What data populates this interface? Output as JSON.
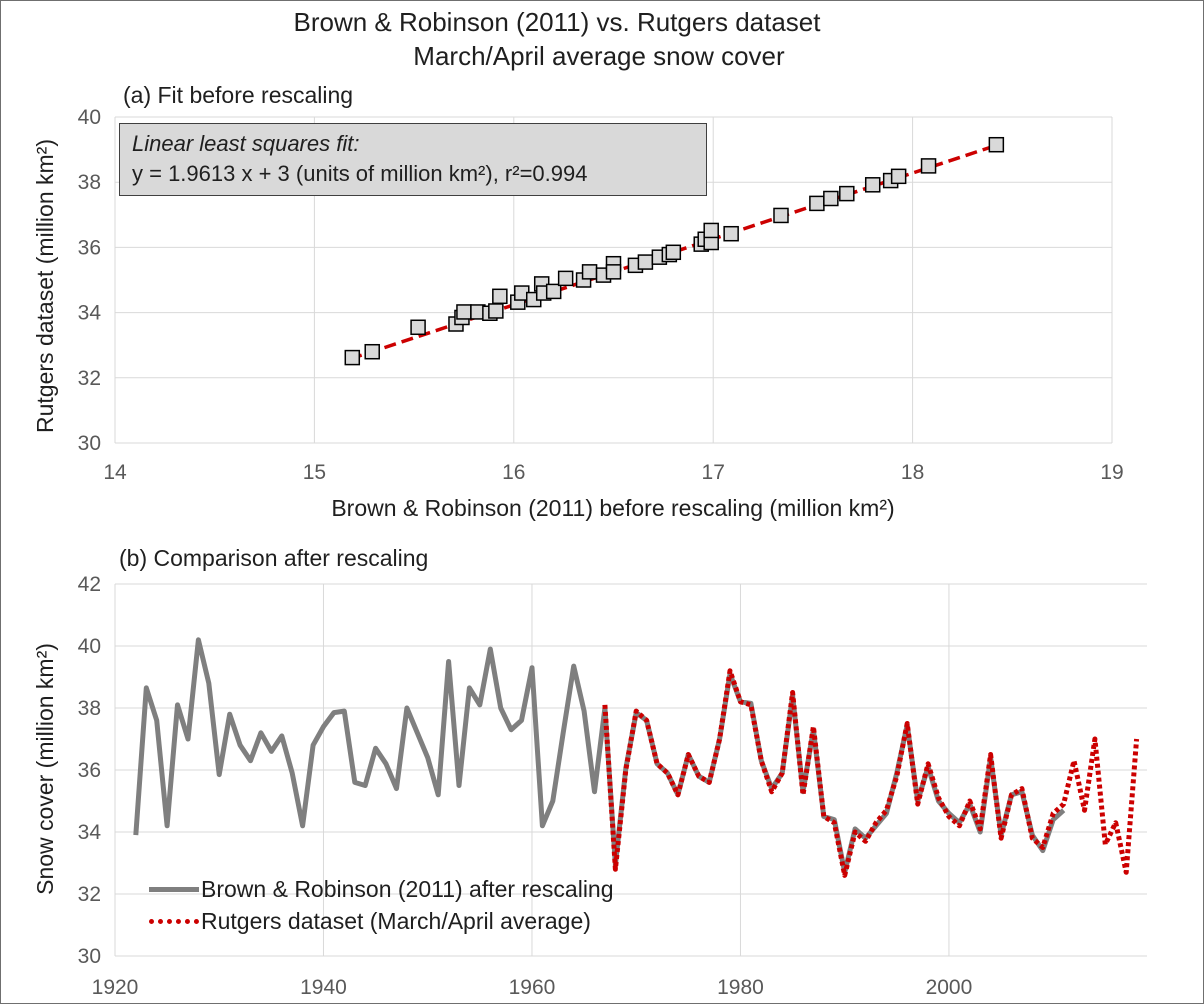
{
  "title": {
    "line1": "Brown & Robinson (2011) vs. Rutgers dataset",
    "line2": "March/April average snow cover"
  },
  "colors": {
    "grid": "#d9d9d9",
    "scatter_fill": "#d9d9d9",
    "fit_line": "#cc0000",
    "brown_line": "#7f7f7f",
    "rutgers_line": "#cc0000"
  },
  "annotation": {
    "line1": "Linear least squares fit:",
    "line2": "y = 1.9613 x + 3 (units of million km²), r²=0.994"
  },
  "chart_data": [
    {
      "type": "scatter",
      "panel_label": "(a) Fit before rescaling",
      "xlabel": "Brown & Robinson (2011) before rescaling (million km²)",
      "ylabel": "Rutgers dataset (million km²)",
      "xlim": [
        14,
        19
      ],
      "ylim": [
        30,
        40
      ],
      "xticks": [
        14,
        15,
        16,
        17,
        18,
        19
      ],
      "yticks": [
        30,
        32,
        34,
        36,
        38,
        40
      ],
      "grid": true,
      "marker": "square",
      "fit": {
        "slope": 1.9613,
        "intercept": 3,
        "r2": 0.994,
        "x_range": [
          15.18,
          18.42
        ],
        "style": "dashed"
      },
      "points": [
        [
          15.19,
          32.62
        ],
        [
          15.29,
          32.8
        ],
        [
          15.52,
          33.55
        ],
        [
          15.71,
          33.65
        ],
        [
          15.74,
          33.85
        ],
        [
          15.75,
          34.02
        ],
        [
          15.82,
          34.02
        ],
        [
          15.88,
          33.98
        ],
        [
          15.91,
          34.05
        ],
        [
          15.93,
          34.5
        ],
        [
          16.02,
          34.32
        ],
        [
          16.04,
          34.6
        ],
        [
          16.1,
          34.4
        ],
        [
          16.14,
          34.88
        ],
        [
          16.15,
          34.6
        ],
        [
          16.2,
          34.65
        ],
        [
          16.26,
          35.05
        ],
        [
          16.35,
          35.0
        ],
        [
          16.38,
          35.25
        ],
        [
          16.45,
          35.15
        ],
        [
          16.5,
          35.5
        ],
        [
          16.5,
          35.25
        ],
        [
          16.61,
          35.45
        ],
        [
          16.66,
          35.55
        ],
        [
          16.73,
          35.7
        ],
        [
          16.78,
          35.78
        ],
        [
          16.8,
          35.85
        ],
        [
          16.94,
          36.1
        ],
        [
          16.96,
          36.25
        ],
        [
          16.99,
          36.15
        ],
        [
          16.99,
          36.52
        ],
        [
          17.09,
          36.42
        ],
        [
          17.34,
          36.98
        ],
        [
          17.52,
          37.35
        ],
        [
          17.59,
          37.5
        ],
        [
          17.67,
          37.65
        ],
        [
          17.8,
          37.92
        ],
        [
          17.89,
          38.05
        ],
        [
          17.93,
          38.18
        ],
        [
          18.08,
          38.5
        ],
        [
          18.42,
          39.15
        ]
      ]
    },
    {
      "type": "line",
      "panel_label": "(b) Comparison after rescaling",
      "xlabel": "",
      "ylabel": "Snow cover (million km²)",
      "xlim": [
        1920,
        2019
      ],
      "ylim": [
        30,
        42
      ],
      "xticks": [
        1920,
        1940,
        1960,
        1980,
        2000
      ],
      "yticks": [
        30,
        32,
        34,
        36,
        38,
        40,
        42
      ],
      "grid": true,
      "legend_position": "bottom-left",
      "series": [
        {
          "name": "Brown & Robinson (2011) after rescaling",
          "style": "solid",
          "points": [
            [
              1922,
              33.9
            ],
            [
              1923,
              38.65
            ],
            [
              1924,
              37.6
            ],
            [
              1925,
              34.2
            ],
            [
              1926,
              38.1
            ],
            [
              1927,
              37.0
            ],
            [
              1928,
              40.2
            ],
            [
              1929,
              38.8
            ],
            [
              1930,
              35.85
            ],
            [
              1931,
              37.8
            ],
            [
              1932,
              36.8
            ],
            [
              1933,
              36.3
            ],
            [
              1934,
              37.2
            ],
            [
              1935,
              36.6
            ],
            [
              1936,
              37.1
            ],
            [
              1937,
              35.9
            ],
            [
              1938,
              34.2
            ],
            [
              1939,
              36.8
            ],
            [
              1940,
              37.4
            ],
            [
              1941,
              37.85
            ],
            [
              1942,
              37.9
            ],
            [
              1943,
              35.6
            ],
            [
              1944,
              35.5
            ],
            [
              1945,
              36.7
            ],
            [
              1946,
              36.2
            ],
            [
              1947,
              35.4
            ],
            [
              1948,
              38.0
            ],
            [
              1949,
              37.2
            ],
            [
              1950,
              36.4
            ],
            [
              1951,
              35.2
            ],
            [
              1952,
              39.5
            ],
            [
              1953,
              35.5
            ],
            [
              1954,
              38.65
            ],
            [
              1955,
              38.1
            ],
            [
              1956,
              39.9
            ],
            [
              1957,
              38.0
            ],
            [
              1958,
              37.3
            ],
            [
              1959,
              37.6
            ],
            [
              1960,
              39.3
            ],
            [
              1961,
              34.2
            ],
            [
              1962,
              35.0
            ],
            [
              1963,
              37.2
            ],
            [
              1964,
              39.35
            ],
            [
              1965,
              37.9
            ],
            [
              1966,
              35.3
            ],
            [
              1967,
              38.0
            ],
            [
              1968,
              32.95
            ],
            [
              1969,
              36.05
            ],
            [
              1970,
              37.85
            ],
            [
              1971,
              37.6
            ],
            [
              1972,
              36.2
            ],
            [
              1973,
              35.9
            ],
            [
              1974,
              35.2
            ],
            [
              1975,
              36.5
            ],
            [
              1976,
              35.8
            ],
            [
              1977,
              35.6
            ],
            [
              1978,
              37.0
            ],
            [
              1979,
              39.1
            ],
            [
              1980,
              38.2
            ],
            [
              1981,
              38.15
            ],
            [
              1982,
              36.3
            ],
            [
              1983,
              35.4
            ],
            [
              1984,
              35.9
            ],
            [
              1985,
              38.4
            ],
            [
              1986,
              35.3
            ],
            [
              1987,
              37.3
            ],
            [
              1988,
              34.5
            ],
            [
              1989,
              34.4
            ],
            [
              1990,
              32.7
            ],
            [
              1991,
              34.1
            ],
            [
              1992,
              33.8
            ],
            [
              1993,
              34.2
            ],
            [
              1994,
              34.6
            ],
            [
              1995,
              35.9
            ],
            [
              1996,
              37.45
            ],
            [
              1997,
              35.0
            ],
            [
              1998,
              36.1
            ],
            [
              1999,
              35.0
            ],
            [
              2000,
              34.6
            ],
            [
              2001,
              34.3
            ],
            [
              2002,
              34.9
            ],
            [
              2003,
              34.0
            ],
            [
              2004,
              36.4
            ],
            [
              2005,
              33.9
            ],
            [
              2006,
              35.2
            ],
            [
              2007,
              35.3
            ],
            [
              2008,
              33.9
            ],
            [
              2009,
              33.4
            ],
            [
              2010,
              34.4
            ],
            [
              2011,
              34.7
            ]
          ]
        },
        {
          "name": "Rutgers dataset (March/April average)",
          "style": "dotted",
          "points": [
            [
              1967,
              38.1
            ],
            [
              1968,
              32.8
            ],
            [
              1969,
              36.0
            ],
            [
              1970,
              37.9
            ],
            [
              1971,
              37.6
            ],
            [
              1972,
              36.2
            ],
            [
              1973,
              35.9
            ],
            [
              1974,
              35.2
            ],
            [
              1975,
              36.5
            ],
            [
              1976,
              35.8
            ],
            [
              1977,
              35.6
            ],
            [
              1978,
              37.0
            ],
            [
              1979,
              39.2
            ],
            [
              1980,
              38.2
            ],
            [
              1981,
              38.1
            ],
            [
              1982,
              36.3
            ],
            [
              1983,
              35.3
            ],
            [
              1984,
              35.9
            ],
            [
              1985,
              38.5
            ],
            [
              1986,
              35.2
            ],
            [
              1987,
              37.4
            ],
            [
              1988,
              34.5
            ],
            [
              1989,
              34.3
            ],
            [
              1990,
              32.6
            ],
            [
              1991,
              34.0
            ],
            [
              1992,
              33.7
            ],
            [
              1993,
              34.3
            ],
            [
              1994,
              34.7
            ],
            [
              1995,
              35.8
            ],
            [
              1996,
              37.5
            ],
            [
              1997,
              34.9
            ],
            [
              1998,
              36.2
            ],
            [
              1999,
              35.1
            ],
            [
              2000,
              34.5
            ],
            [
              2001,
              34.2
            ],
            [
              2002,
              35.0
            ],
            [
              2003,
              34.1
            ],
            [
              2004,
              36.5
            ],
            [
              2005,
              33.8
            ],
            [
              2006,
              35.2
            ],
            [
              2007,
              35.4
            ],
            [
              2008,
              33.8
            ],
            [
              2009,
              33.5
            ],
            [
              2010,
              34.6
            ],
            [
              2011,
              34.9
            ],
            [
              2012,
              36.3
            ],
            [
              2013,
              34.7
            ],
            [
              2014,
              37.0
            ],
            [
              2015,
              33.6
            ],
            [
              2016,
              34.3
            ],
            [
              2017,
              32.7
            ],
            [
              2018,
              37.0
            ]
          ]
        }
      ]
    }
  ]
}
